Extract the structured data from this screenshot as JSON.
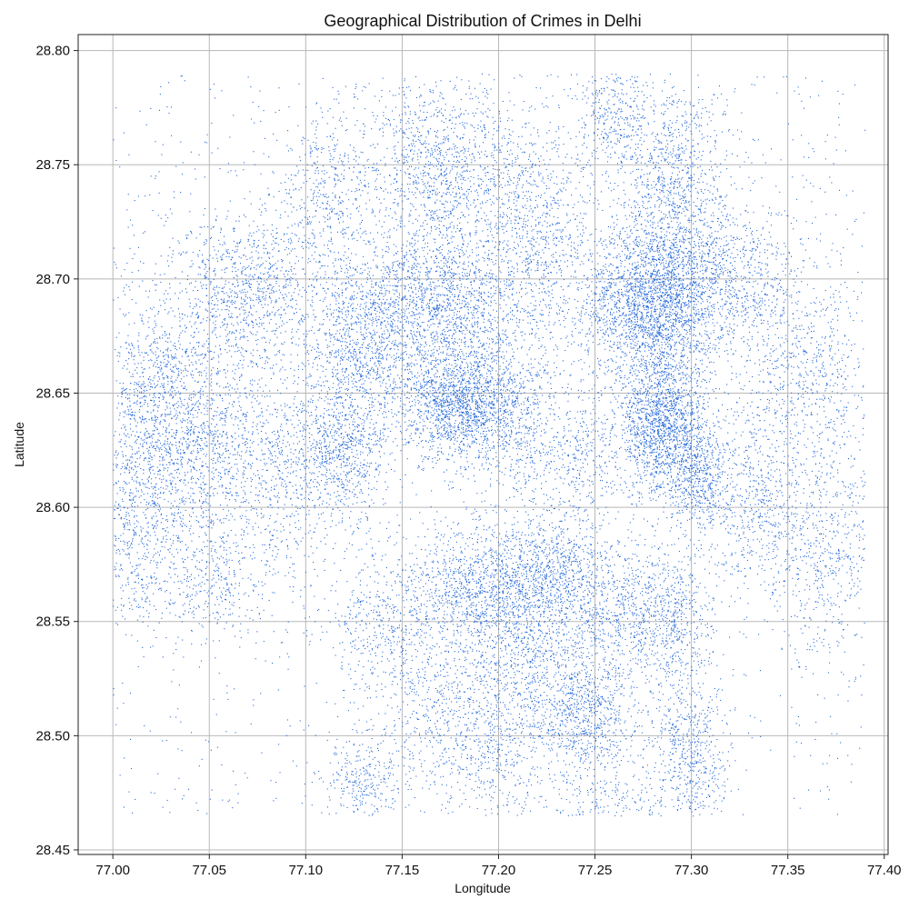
{
  "chart_data": {
    "type": "scatter",
    "title": "Geographical Distribution of Crimes in Delhi",
    "xlabel": "Longitude",
    "ylabel": "Latitude",
    "xlim": [
      76.982,
      77.402
    ],
    "ylim": [
      28.448,
      28.807
    ],
    "xticks": [
      "77.00",
      "77.05",
      "77.10",
      "77.15",
      "77.20",
      "77.25",
      "77.30",
      "77.35",
      "77.40"
    ],
    "yticks": [
      "28.45",
      "28.50",
      "28.55",
      "28.60",
      "28.65",
      "28.70",
      "28.75",
      "28.80"
    ],
    "grid": true,
    "series": [
      {
        "color": "#2468d8",
        "clusters": [
          {
            "x": 77.28,
            "y": 28.69,
            "sx": 0.018,
            "sy": 0.018,
            "n": 2600
          },
          {
            "x": 77.285,
            "y": 28.635,
            "sx": 0.012,
            "sy": 0.015,
            "n": 1700
          },
          {
            "x": 77.305,
            "y": 28.612,
            "sx": 0.008,
            "sy": 0.012,
            "n": 500
          },
          {
            "x": 77.29,
            "y": 28.745,
            "sx": 0.015,
            "sy": 0.022,
            "n": 900
          },
          {
            "x": 77.32,
            "y": 28.7,
            "sx": 0.018,
            "sy": 0.016,
            "n": 700
          },
          {
            "x": 77.26,
            "y": 28.77,
            "sx": 0.01,
            "sy": 0.012,
            "n": 300
          },
          {
            "x": 77.36,
            "y": 28.66,
            "sx": 0.018,
            "sy": 0.025,
            "n": 700
          },
          {
            "x": 77.37,
            "y": 28.58,
            "sx": 0.014,
            "sy": 0.022,
            "n": 500
          },
          {
            "x": 77.335,
            "y": 28.6,
            "sx": 0.012,
            "sy": 0.02,
            "n": 500
          },
          {
            "x": 77.18,
            "y": 28.645,
            "sx": 0.014,
            "sy": 0.012,
            "n": 1500
          },
          {
            "x": 77.17,
            "y": 28.69,
            "sx": 0.022,
            "sy": 0.018,
            "n": 1700
          },
          {
            "x": 77.13,
            "y": 28.67,
            "sx": 0.015,
            "sy": 0.02,
            "n": 1000
          },
          {
            "x": 77.12,
            "y": 28.625,
            "sx": 0.012,
            "sy": 0.015,
            "n": 700
          },
          {
            "x": 77.17,
            "y": 28.75,
            "sx": 0.022,
            "sy": 0.018,
            "n": 1100
          },
          {
            "x": 77.22,
            "y": 28.72,
            "sx": 0.015,
            "sy": 0.025,
            "n": 800
          },
          {
            "x": 77.21,
            "y": 28.64,
            "sx": 0.012,
            "sy": 0.02,
            "n": 600
          },
          {
            "x": 77.11,
            "y": 28.74,
            "sx": 0.012,
            "sy": 0.018,
            "n": 400
          },
          {
            "x": 77.24,
            "y": 28.62,
            "sx": 0.01,
            "sy": 0.015,
            "n": 300
          },
          {
            "x": 77.04,
            "y": 28.63,
            "sx": 0.02,
            "sy": 0.025,
            "n": 1400
          },
          {
            "x": 77.07,
            "y": 28.695,
            "sx": 0.02,
            "sy": 0.018,
            "n": 1000
          },
          {
            "x": 77.09,
            "y": 28.62,
            "sx": 0.015,
            "sy": 0.025,
            "n": 600
          },
          {
            "x": 77.01,
            "y": 28.6,
            "sx": 0.012,
            "sy": 0.025,
            "n": 500
          },
          {
            "x": 77.05,
            "y": 28.57,
            "sx": 0.02,
            "sy": 0.014,
            "n": 400
          },
          {
            "x": 77.02,
            "y": 28.66,
            "sx": 0.012,
            "sy": 0.02,
            "n": 350
          },
          {
            "x": 77.19,
            "y": 28.565,
            "sx": 0.018,
            "sy": 0.014,
            "n": 1200
          },
          {
            "x": 77.23,
            "y": 28.57,
            "sx": 0.014,
            "sy": 0.014,
            "n": 800
          },
          {
            "x": 77.245,
            "y": 28.51,
            "sx": 0.012,
            "sy": 0.016,
            "n": 800
          },
          {
            "x": 77.215,
            "y": 28.53,
            "sx": 0.014,
            "sy": 0.018,
            "n": 600
          },
          {
            "x": 77.27,
            "y": 28.555,
            "sx": 0.018,
            "sy": 0.014,
            "n": 700
          },
          {
            "x": 77.3,
            "y": 28.49,
            "sx": 0.01,
            "sy": 0.018,
            "n": 500
          },
          {
            "x": 77.29,
            "y": 28.545,
            "sx": 0.012,
            "sy": 0.018,
            "n": 400
          },
          {
            "x": 77.17,
            "y": 28.51,
            "sx": 0.02,
            "sy": 0.02,
            "n": 600
          },
          {
            "x": 77.14,
            "y": 28.55,
            "sx": 0.014,
            "sy": 0.016,
            "n": 400
          },
          {
            "x": 77.13,
            "y": 28.48,
            "sx": 0.01,
            "sy": 0.01,
            "n": 250
          },
          {
            "x": 77.2,
            "y": 28.49,
            "sx": 0.015,
            "sy": 0.015,
            "n": 300
          },
          {
            "x": 77.26,
            "y": 28.47,
            "sx": 0.02,
            "sy": 0.008,
            "n": 150
          }
        ],
        "uniform_points": 1800
      }
    ]
  }
}
